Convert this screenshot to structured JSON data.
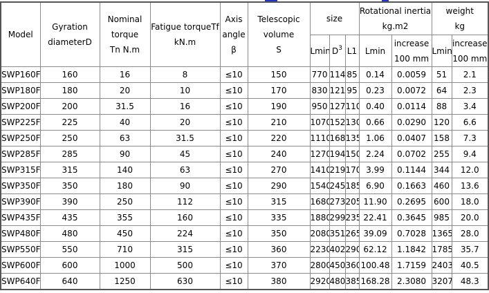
{
  "headers": {
    "model": "Model",
    "gyration": [
      "Gyration",
      "diameterD"
    ],
    "nominal": [
      "Nominal",
      "torque",
      "Tn N.m"
    ],
    "fatigue": [
      "Fatigue torqueTf",
      "kN.m"
    ],
    "axis": [
      "Axis",
      "angle",
      "β"
    ],
    "telescopic": [
      "Telescopic",
      "volume",
      "S"
    ],
    "size": "size",
    "rot": [
      "Rotational inertia",
      "kg.m2"
    ],
    "weight": [
      "weight",
      "kg"
    ],
    "lmin": "Lmin",
    "d": "D",
    "d_sup": "3",
    "l1": "L1",
    "increase": [
      "increase",
      "100 mm"
    ]
  },
  "rows": [
    [
      "SWP160F",
      "160",
      "16",
      "8",
      "≤10",
      "150",
      "770",
      "114",
      "85",
      "0.14",
      "0.0059",
      "51",
      "2.1"
    ],
    [
      "SWP180F",
      "180",
      "20",
      "10",
      "≤10",
      "170",
      "830",
      "121",
      "95",
      "0.23",
      "0.0072",
      "64",
      "2.3"
    ],
    [
      "SWP200F",
      "200",
      "31.5",
      "16",
      "≤10",
      "190",
      "950",
      "127",
      "110",
      "0.40",
      "0.0114",
      "88",
      "3.4"
    ],
    [
      "SWP225F",
      "225",
      "40",
      "20",
      "≤10",
      "210",
      "1070",
      "152",
      "130",
      "0.66",
      "0.0290",
      "120",
      "6.6"
    ],
    [
      "SWP250F",
      "250",
      "63",
      "31.5",
      "≤10",
      "220",
      "1110",
      "168",
      "135",
      "1.06",
      "0.0407",
      "158",
      "7.3"
    ],
    [
      "SWP285F",
      "285",
      "90",
      "45",
      "≤10",
      "240",
      "1270",
      "194",
      "150",
      "2.24",
      "0.0702",
      "255",
      "9.4"
    ],
    [
      "SWP315F",
      "315",
      "140",
      "63",
      "≤10",
      "270",
      "1410",
      "219",
      "170",
      "3.99",
      "0.1144",
      "344",
      "12.0"
    ],
    [
      "SWP350F",
      "350",
      "180",
      "90",
      "≤10",
      "290",
      "1540",
      "245",
      "185",
      "6.90",
      "0.1663",
      "460",
      "13.6"
    ],
    [
      "SWP390F",
      "390",
      "250",
      "112",
      "≤10",
      "315",
      "1680",
      "273",
      "205",
      "11.90",
      "0.2695",
      "600",
      "18.0"
    ],
    [
      "SWP435F",
      "435",
      "355",
      "160",
      "≤10",
      "335",
      "1880",
      "299",
      "235",
      "22.41",
      "0.3645",
      "985",
      "20.0"
    ],
    [
      "SWP480F",
      "480",
      "450",
      "224",
      "≤10",
      "350",
      "2080",
      "351",
      "265",
      "39.09",
      "0.7028",
      "1365",
      "28.0"
    ],
    [
      "SWP550F",
      "550",
      "710",
      "315",
      "≤10",
      "360",
      "2230",
      "402",
      "290",
      "62.12",
      "1.1842",
      "1785",
      "35.7"
    ],
    [
      "SWP600F",
      "600",
      "1000",
      "500",
      "≤10",
      "370",
      "2800",
      "450",
      "360",
      "100.48",
      "1.7159",
      "2403",
      "40.5"
    ],
    [
      "SWP640F",
      "640",
      "1250",
      "630",
      "≤10",
      "380",
      "2920",
      "480",
      "385",
      "168.28",
      "2.3080",
      "3207",
      "48.3"
    ]
  ]
}
